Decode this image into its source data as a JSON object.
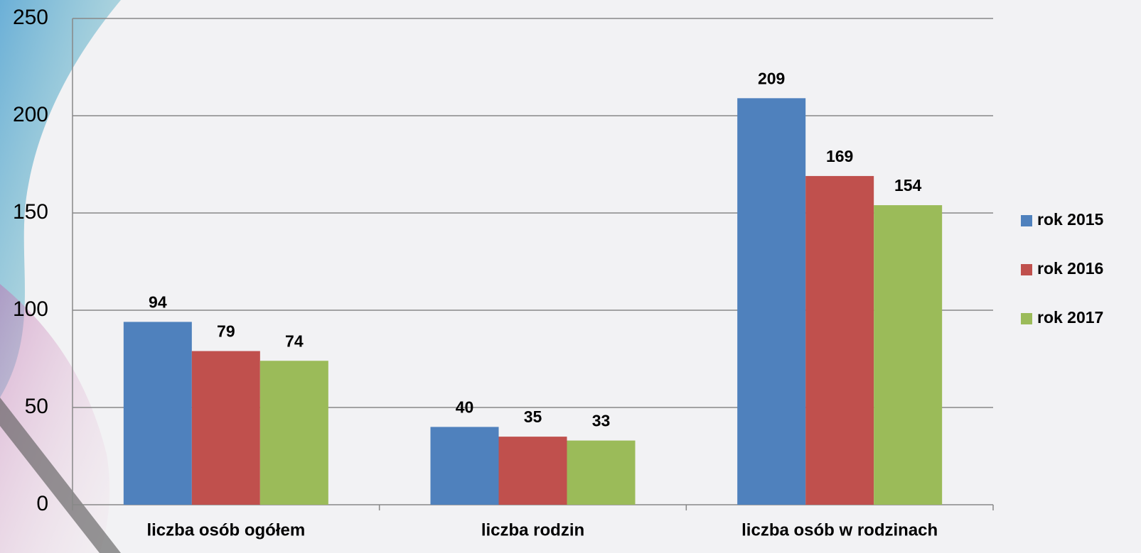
{
  "chart_data": {
    "type": "bar",
    "categories": [
      "liczba osób ogółem",
      "liczba rodzin",
      "liczba osób w rodzinach"
    ],
    "series": [
      {
        "name": "rok 2015",
        "color": "#4f81bd",
        "values": [
          94,
          40,
          209
        ]
      },
      {
        "name": "rok 2016",
        "color": "#c0504d",
        "values": [
          79,
          35,
          169
        ]
      },
      {
        "name": "rok 2017",
        "color": "#9bbb59",
        "values": [
          74,
          33,
          154
        ]
      }
    ],
    "ylim": [
      0,
      250
    ],
    "yticks": [
      0,
      50,
      100,
      150,
      200,
      250
    ],
    "grid": true,
    "legend": "right"
  }
}
